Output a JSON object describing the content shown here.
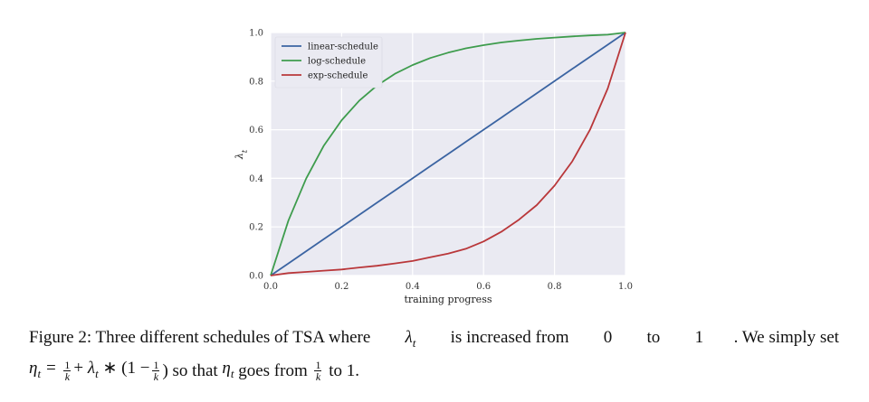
{
  "chart_data": {
    "type": "line",
    "xlabel": "training progress",
    "ylabel": "λ_t",
    "xlim": [
      0.0,
      1.0
    ],
    "ylim": [
      0.0,
      1.0
    ],
    "xticks": [
      "0.0",
      "0.2",
      "0.4",
      "0.6",
      "0.8",
      "1.0"
    ],
    "yticks": [
      "0.0",
      "0.2",
      "0.4",
      "0.6",
      "0.8",
      "1.0"
    ],
    "grid": true,
    "legend_position": "top-left",
    "x": [
      0.0,
      0.05,
      0.1,
      0.15,
      0.2,
      0.25,
      0.3,
      0.35,
      0.4,
      0.45,
      0.5,
      0.55,
      0.6,
      0.65,
      0.7,
      0.75,
      0.8,
      0.85,
      0.9,
      0.95,
      1.0
    ],
    "series": [
      {
        "name": "linear-schedule",
        "color": "#3b64a2",
        "values": [
          0.0,
          0.05,
          0.1,
          0.15,
          0.2,
          0.25,
          0.3,
          0.35,
          0.4,
          0.45,
          0.5,
          0.55,
          0.6,
          0.65,
          0.7,
          0.75,
          0.8,
          0.85,
          0.9,
          0.95,
          1.0
        ]
      },
      {
        "name": "log-schedule",
        "color": "#3e9c4d",
        "values": [
          0.0,
          0.226,
          0.399,
          0.535,
          0.639,
          0.72,
          0.782,
          0.83,
          0.866,
          0.895,
          0.917,
          0.935,
          0.948,
          0.959,
          0.967,
          0.974,
          0.979,
          0.984,
          0.988,
          0.991,
          1.0
        ]
      },
      {
        "name": "exp-schedule",
        "color": "#b9373a",
        "values": [
          0.0,
          0.01,
          0.015,
          0.02,
          0.025,
          0.033,
          0.04,
          0.05,
          0.06,
          0.075,
          0.09,
          0.11,
          0.14,
          0.18,
          0.23,
          0.29,
          0.37,
          0.47,
          0.6,
          0.77,
          1.0
        ]
      }
    ]
  },
  "caption": {
    "line1_a": "Figure 2: Three different schedules of TSA where ",
    "line1_b": " is increased from ",
    "line1_c": "0",
    "line1_d": " to ",
    "line1_e": "1",
    "line1_f": ". We simply set",
    "line2_a": " so that ",
    "line2_b": " goes from ",
    "line2_c": " to ",
    "line2_d": "1",
    "line2_e": "."
  }
}
